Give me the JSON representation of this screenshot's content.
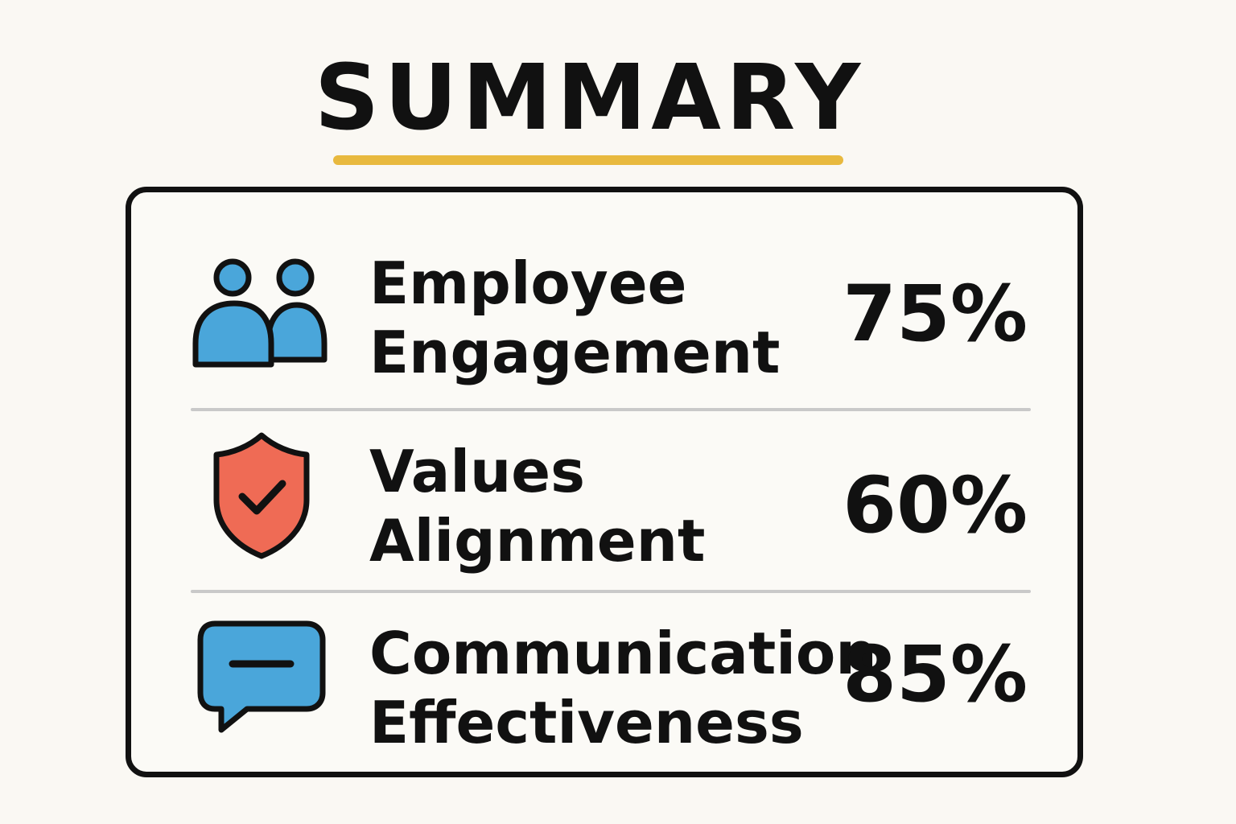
{
  "title": "SUMMARY",
  "colors": {
    "accent_underline": "#e8b93e",
    "people_icon": "#4aa6da",
    "shield_icon": "#ef6b55",
    "chat_icon": "#4aa6da",
    "divider": "#c9c9c9"
  },
  "metrics": [
    {
      "icon": "people-icon",
      "label_line1": "Employee",
      "label_line2": "Engagement",
      "value": "75%",
      "percent": 75
    },
    {
      "icon": "shield-check-icon",
      "label_line1": "Values",
      "label_line2": "Alignment",
      "value": "60%",
      "percent": 60
    },
    {
      "icon": "chat-bubble-icon",
      "label_line1": "Communication",
      "label_line2": "Effectiveness",
      "value": "85%",
      "percent": 85
    }
  ]
}
